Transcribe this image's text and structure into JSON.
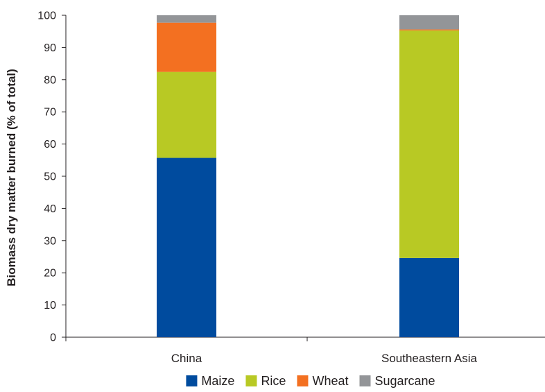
{
  "chart_data": {
    "type": "bar",
    "stacked": true,
    "categories": [
      "China",
      "Southeastern Asia"
    ],
    "series": [
      {
        "name": "Maize",
        "color": "#004b9e",
        "values": [
          55.7,
          24.6
        ]
      },
      {
        "name": "Rice",
        "color": "#b8c924",
        "values": [
          26.7,
          70.7
        ]
      },
      {
        "name": "Wheat",
        "color": "#f37021",
        "values": [
          15.3,
          0.3
        ]
      },
      {
        "name": "Sugarcane",
        "color": "#939598",
        "values": [
          2.3,
          4.4
        ]
      }
    ],
    "title": "",
    "xlabel": "",
    "ylabel": "Biomass dry matter burned (% of total)",
    "ylim": [
      0,
      100
    ],
    "yticks": [
      0,
      10,
      20,
      30,
      40,
      50,
      60,
      70,
      80,
      90,
      100
    ],
    "grid": false,
    "legend_position": "bottom"
  }
}
